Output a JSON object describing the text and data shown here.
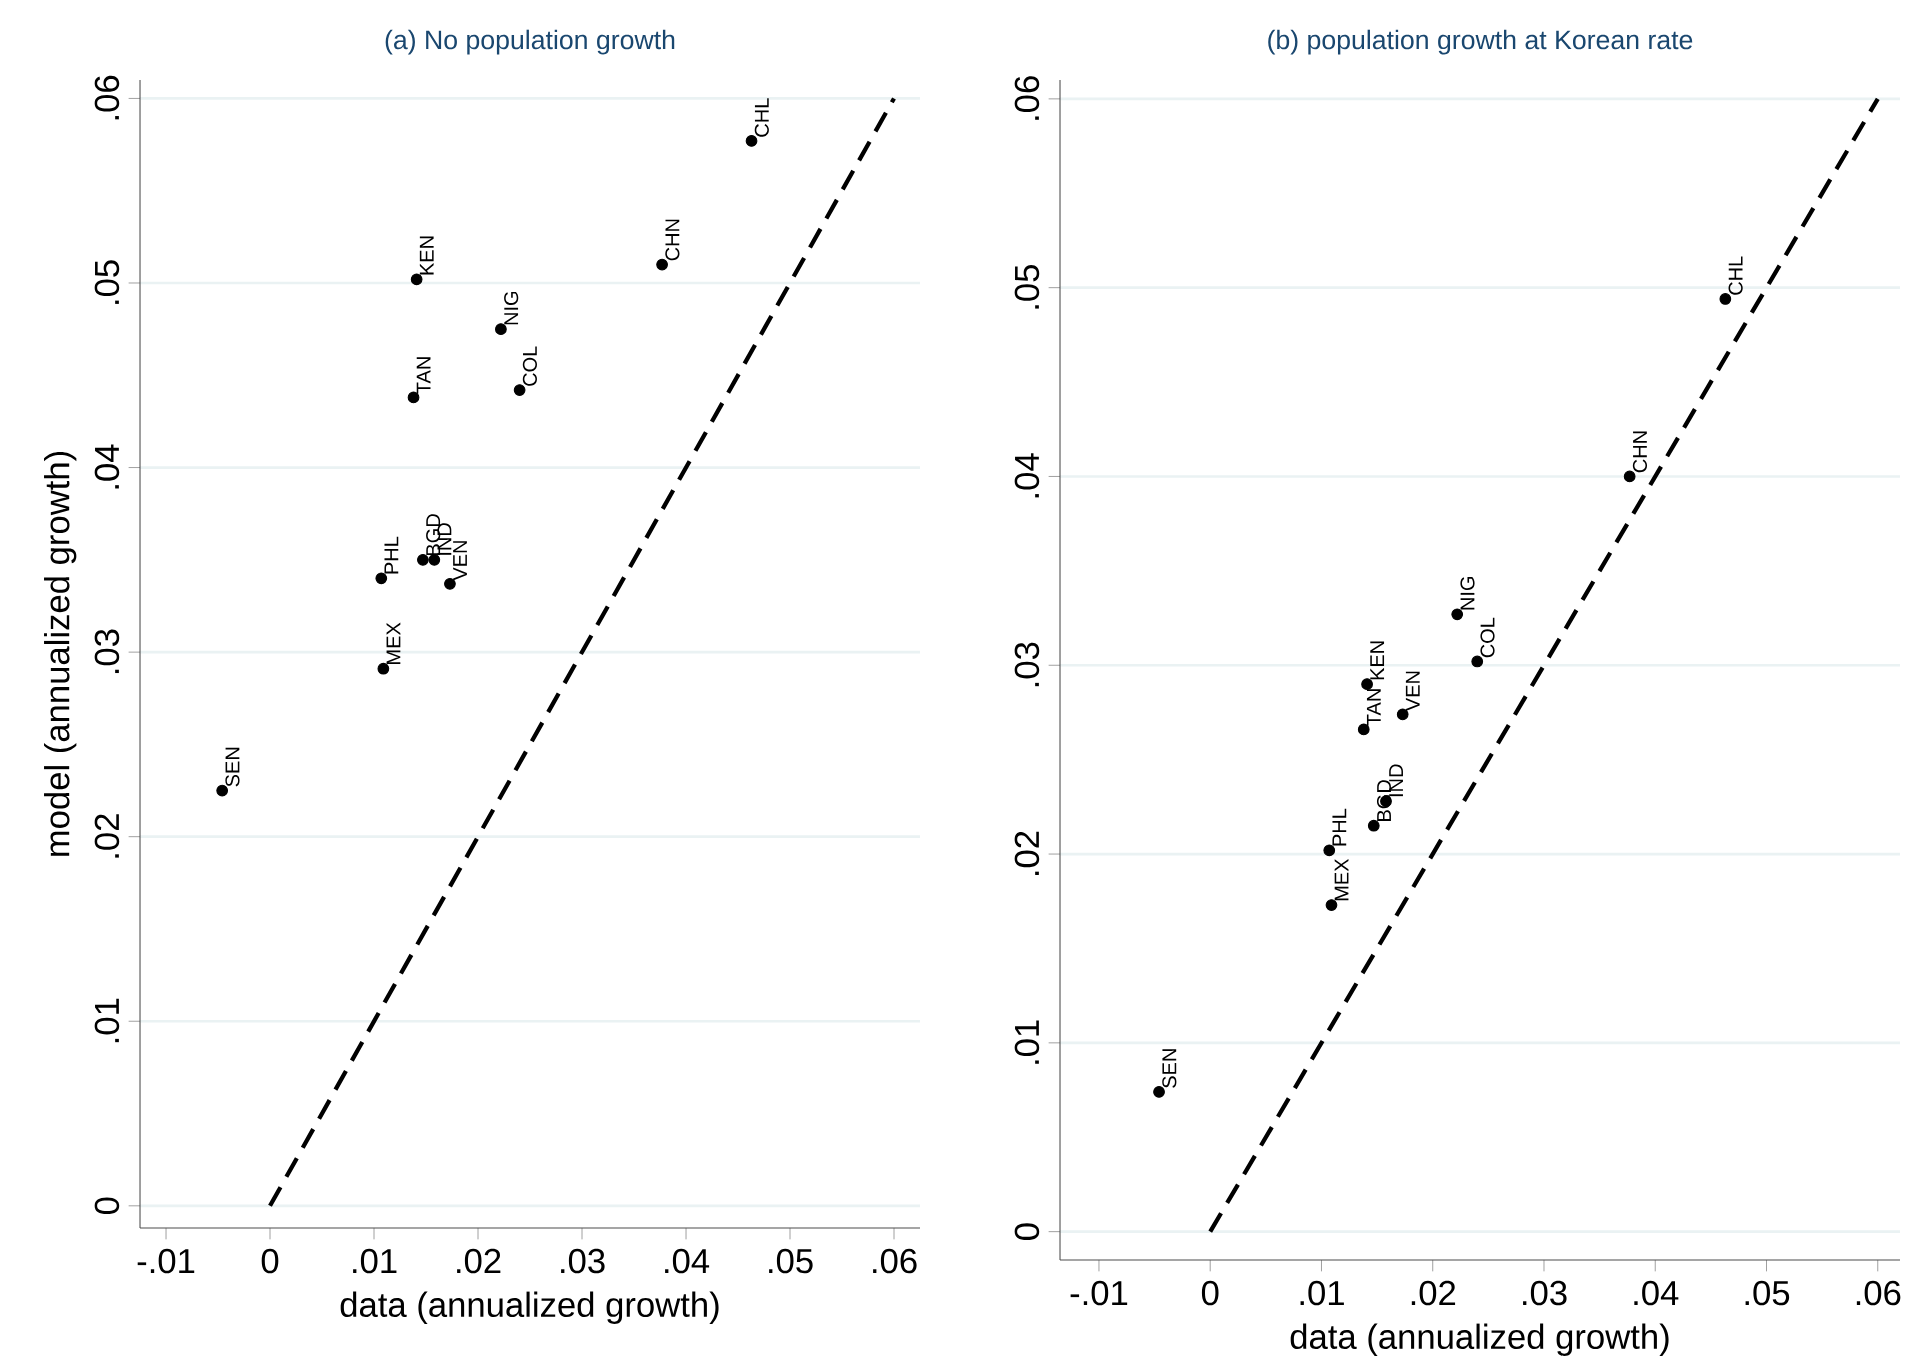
{
  "chart_data": [
    {
      "type": "scatter",
      "title": "(a) No population growth",
      "xlabel": "data (annualized growth)",
      "ylabel": "model (annualized growth)",
      "xlim": [
        -0.0125,
        0.0625
      ],
      "ylim": [
        -0.0012,
        0.061
      ],
      "xticks": [
        {
          "value": -0.01,
          "label": "-.01"
        },
        0,
        {
          "value": 0.01,
          "label": ".01"
        },
        {
          "value": 0.02,
          "label": ".02"
        },
        {
          "value": 0.03,
          "label": ".03"
        },
        {
          "value": 0.04,
          "label": ".04"
        },
        {
          "value": 0.05,
          "label": ".05"
        },
        {
          "value": 0.06,
          "label": ".06"
        }
      ],
      "yticks": [
        0,
        {
          "value": 0.01,
          "label": ".01"
        },
        {
          "value": 0.02,
          "label": ".02"
        },
        {
          "value": 0.03,
          "label": ".03"
        },
        {
          "value": 0.04,
          "label": ".04"
        },
        {
          "value": 0.05,
          "label": ".05"
        },
        {
          "value": 0.06,
          "label": ".06"
        }
      ],
      "grid": "y",
      "series": [
        {
          "color": "#000000",
          "marker": "circle",
          "x": [
            0.0463,
            0.0377,
            0.0141,
            0.0222,
            0.0138,
            0.024,
            0.0107,
            0.0147,
            0.0158,
            0.0173,
            0.0109,
            -0.0046
          ],
          "values": [
            0.0577,
            0.051,
            0.0502,
            0.0475,
            0.0438,
            0.0442,
            0.034,
            0.035,
            0.035,
            0.0337,
            0.0291,
            0.0225
          ]
        },
        {
          "type": "line",
          "color": "#000000",
          "marker": "none",
          "line_style": "dashed",
          "x": [
            0,
            0.06
          ],
          "values": [
            0,
            0.06
          ]
        }
      ],
      "annotations": [
        {
          "text": "CHL",
          "x": 0.0463,
          "y": 0.0577
        },
        {
          "text": "CHN",
          "x": 0.0377,
          "y": 0.051
        },
        {
          "text": "KEN",
          "x": 0.0141,
          "y": 0.0502
        },
        {
          "text": "NIG",
          "x": 0.0222,
          "y": 0.0475
        },
        {
          "text": "TAN",
          "x": 0.0138,
          "y": 0.0438
        },
        {
          "text": "COL",
          "x": 0.024,
          "y": 0.0442
        },
        {
          "text": "PHL",
          "x": 0.0107,
          "y": 0.034
        },
        {
          "text": "BGD",
          "x": 0.0147,
          "y": 0.035
        },
        {
          "text": "IND",
          "x": 0.0158,
          "y": 0.035
        },
        {
          "text": "VEN",
          "x": 0.0173,
          "y": 0.0337
        },
        {
          "text": "MEX",
          "x": 0.0109,
          "y": 0.0291
        },
        {
          "text": "SEN",
          "x": -0.0046,
          "y": 0.0225
        }
      ]
    },
    {
      "type": "scatter",
      "title": "(b) population growth at Korean rate",
      "xlabel": "data (annualized growth)",
      "xlim": [
        -0.0135,
        0.062
      ],
      "ylim": [
        -0.0015,
        0.061
      ],
      "xticks": [
        {
          "value": -0.01,
          "label": "-.01"
        },
        0,
        {
          "value": 0.01,
          "label": ".01"
        },
        {
          "value": 0.02,
          "label": ".02"
        },
        {
          "value": 0.03,
          "label": ".03"
        },
        {
          "value": 0.04,
          "label": ".04"
        },
        {
          "value": 0.05,
          "label": ".05"
        },
        {
          "value": 0.06,
          "label": ".06"
        }
      ],
      "yticks": [
        0,
        {
          "value": 0.01,
          "label": ".01"
        },
        {
          "value": 0.02,
          "label": ".02"
        },
        {
          "value": 0.03,
          "label": ".03"
        },
        {
          "value": 0.04,
          "label": ".04"
        },
        {
          "value": 0.05,
          "label": ".05"
        },
        {
          "value": 0.06,
          "label": ".06"
        }
      ],
      "grid": "y",
      "series": [
        {
          "color": "#000000",
          "marker": "circle",
          "x": [
            0.0463,
            0.0377,
            0.0141,
            0.0222,
            0.0138,
            0.024,
            0.0107,
            0.0147,
            0.0158,
            0.0173,
            0.0109,
            -0.0046
          ],
          "values": [
            0.0494,
            0.04,
            0.029,
            0.0327,
            0.0266,
            0.0302,
            0.0202,
            0.0215,
            0.0228,
            0.0274,
            0.0173,
            0.0074
          ]
        },
        {
          "type": "line",
          "color": "#000000",
          "marker": "none",
          "line_style": "dashed",
          "x": [
            0,
            0.06
          ],
          "values": [
            0,
            0.06
          ]
        }
      ],
      "annotations": [
        {
          "text": "CHL",
          "x": 0.0463,
          "y": 0.0494
        },
        {
          "text": "CHN",
          "x": 0.0377,
          "y": 0.04
        },
        {
          "text": "KEN",
          "x": 0.0141,
          "y": 0.029
        },
        {
          "text": "NIG",
          "x": 0.0222,
          "y": 0.0327
        },
        {
          "text": "TAN",
          "x": 0.0138,
          "y": 0.0266
        },
        {
          "text": "COL",
          "x": 0.024,
          "y": 0.0302
        },
        {
          "text": "PHL",
          "x": 0.0107,
          "y": 0.0202
        },
        {
          "text": "BGD",
          "x": 0.0147,
          "y": 0.0215
        },
        {
          "text": "IND",
          "x": 0.0158,
          "y": 0.0228
        },
        {
          "text": "VEN",
          "x": 0.0173,
          "y": 0.0274
        },
        {
          "text": "MEX",
          "x": 0.0109,
          "y": 0.0173
        },
        {
          "text": "SEN",
          "x": -0.0046,
          "y": 0.0074
        }
      ]
    }
  ]
}
